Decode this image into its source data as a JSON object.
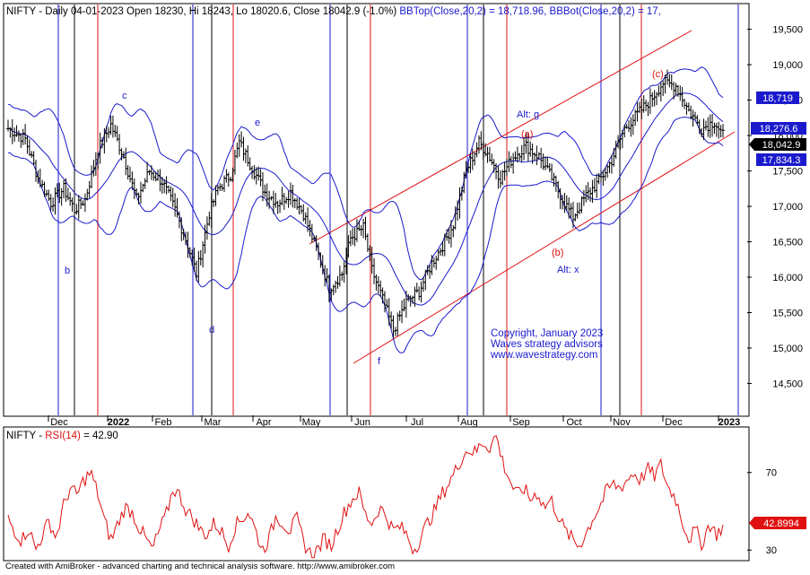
{
  "header": {
    "symbol": "NIFTY",
    "sep": " - ",
    "info": "Daily 04-01-2023 Open 18230, Hi 18243, Lo 18020.6, Close 18042.9 (-1.0%)",
    "bbtop": "BBTop(Close,20,2) = 18,718.96,",
    "bbbot": "BBBot(Close,20,2) = 17,"
  },
  "rsi_header": {
    "symbol": "NIFTY",
    "sep": " - ",
    "label": "RSI(14)",
    "eq": " = 42.90"
  },
  "footer": "Created with AmiBroker - advanced charting and technical analysis software. http://www.amibroker.com",
  "copyright": [
    "Copyright, January 2023",
    "Waves strategy advisors",
    "www.wavestrategy.com"
  ],
  "colors": {
    "price_bar": "#000000",
    "bollinger": "#1a1acc",
    "channel": "#e01010",
    "rsi": "#e01010",
    "vline_blue": "#1a1acc",
    "vline_red": "#e01010",
    "vline_black": "#000000"
  },
  "chart_data": [
    {
      "type": "ohlc",
      "y_ticks": [
        14500,
        15000,
        15500,
        16000,
        16500,
        17000,
        17500,
        18000,
        18500,
        19000,
        19500
      ],
      "y_tick_labels": [
        "14,500",
        "15,000",
        "15,500",
        "16,000",
        "16,500",
        "17,000",
        "17,500",
        "18,000",
        "18,500",
        "19,000",
        "19,500"
      ],
      "ylim": [
        14050,
        19850
      ],
      "x_labels": [
        "Dec",
        "2022",
        "Feb",
        "Mar",
        "Apr",
        "May",
        "Jun",
        "Jul",
        "Aug",
        "Sep",
        "Oct",
        "Nov",
        "Dec",
        "2023"
      ],
      "x_label_bold": [
        false,
        true,
        false,
        false,
        false,
        false,
        false,
        false,
        false,
        false,
        false,
        false,
        false,
        true
      ],
      "close_path": [
        [
          0,
          18100
        ],
        [
          8,
          17950
        ],
        [
          14,
          17400
        ],
        [
          20,
          17050
        ],
        [
          26,
          17250
        ],
        [
          31,
          16950
        ],
        [
          36,
          17100
        ],
        [
          42,
          17800
        ],
        [
          48,
          18150
        ],
        [
          54,
          17700
        ],
        [
          60,
          17100
        ],
        [
          66,
          17500
        ],
        [
          72,
          17350
        ],
        [
          78,
          16950
        ],
        [
          84,
          16450
        ],
        [
          88,
          16050
        ],
        [
          94,
          16900
        ],
        [
          98,
          17250
        ],
        [
          104,
          17450
        ],
        [
          108,
          17900
        ],
        [
          114,
          17550
        ],
        [
          120,
          17200
        ],
        [
          126,
          17050
        ],
        [
          132,
          17200
        ],
        [
          138,
          16900
        ],
        [
          144,
          16400
        ],
        [
          150,
          15850
        ],
        [
          156,
          16050
        ],
        [
          160,
          16550
        ],
        [
          166,
          16700
        ],
        [
          170,
          16100
        ],
        [
          176,
          15600
        ],
        [
          180,
          15250
        ],
        [
          186,
          15650
        ],
        [
          192,
          15800
        ],
        [
          198,
          16200
        ],
        [
          204,
          16500
        ],
        [
          208,
          16750
        ],
        [
          214,
          17500
        ],
        [
          220,
          17900
        ],
        [
          224,
          17750
        ],
        [
          230,
          17400
        ],
        [
          236,
          17700
        ],
        [
          242,
          17850
        ],
        [
          248,
          17700
        ],
        [
          254,
          17400
        ],
        [
          260,
          17050
        ],
        [
          264,
          16850
        ],
        [
          270,
          17150
        ],
        [
          276,
          17350
        ],
        [
          282,
          17650
        ],
        [
          288,
          18100
        ],
        [
          294,
          18300
        ],
        [
          300,
          18500
        ],
        [
          306,
          18750
        ],
        [
          312,
          18700
        ],
        [
          318,
          18350
        ],
        [
          324,
          18100
        ],
        [
          330,
          18200
        ],
        [
          334,
          18000
        ]
      ],
      "bb_top": "18,719",
      "close": "18,276.6",
      "last": "18,042.9",
      "bb_bot": "17,834.3",
      "annotations": [
        "c",
        "b",
        "e",
        "d",
        "f",
        "Alt: g",
        "(a)",
        "(b)",
        "Alt: x",
        "(c)"
      ]
    },
    {
      "type": "line",
      "series": [
        {
          "name": "RSI(14)"
        }
      ],
      "y_ticks": [
        30,
        70
      ],
      "ylim": [
        25,
        93
      ],
      "last_value": "42.8994",
      "values": [
        46,
        40,
        35,
        42,
        30,
        38,
        45,
        36,
        52,
        62,
        58,
        66,
        70,
        60,
        45,
        35,
        44,
        52,
        50,
        42,
        36,
        30,
        40,
        48,
        62,
        58,
        50,
        46,
        40,
        38,
        44,
        40,
        32,
        42,
        46,
        50,
        40,
        30,
        36,
        48,
        44,
        40,
        46,
        34,
        28,
        30,
        36,
        32,
        42,
        50,
        56,
        60,
        48,
        44,
        52,
        48,
        40,
        42,
        38,
        30,
        36,
        44,
        50,
        58,
        64,
        70,
        78,
        82,
        80,
        86,
        83,
        89,
        75,
        66,
        58,
        62,
        56,
        60,
        52,
        56,
        48,
        40,
        36,
        32,
        38,
        46,
        52,
        60,
        64,
        62,
        66,
        70,
        66,
        72,
        68,
        74,
        62,
        58,
        46,
        36,
        40,
        33,
        44,
        38,
        42
      ]
    }
  ]
}
